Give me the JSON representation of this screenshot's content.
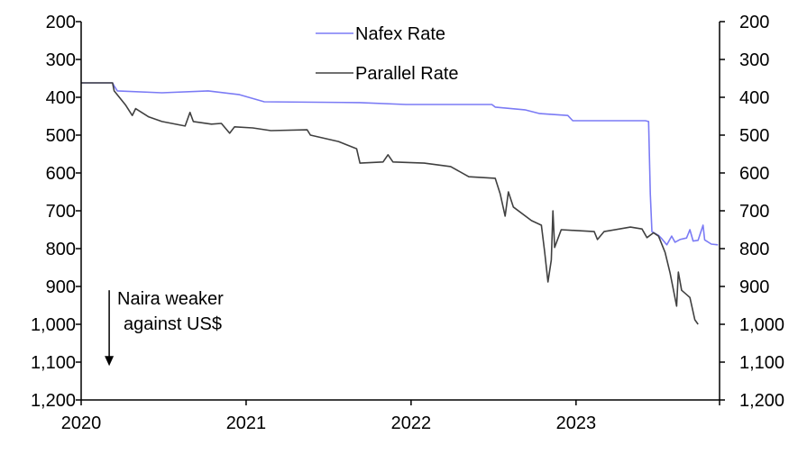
{
  "chart_data": {
    "type": "line",
    "title": "",
    "xlabel": "",
    "ylabel": "",
    "x_ticks": [
      "2020",
      "2021",
      "2022",
      "2023"
    ],
    "x_tick_values": [
      2020,
      2021,
      2022,
      2023
    ],
    "xlim": [
      2020,
      2023.87
    ],
    "ylim": [
      200,
      1200
    ],
    "y_inverted": true,
    "y_ticks": [
      "200",
      "300",
      "400",
      "500",
      "600",
      "700",
      "800",
      "900",
      "1,000",
      "1,100",
      "1,200"
    ],
    "y_tick_values": [
      200,
      300,
      400,
      500,
      600,
      700,
      800,
      900,
      1000,
      1100,
      1200
    ],
    "legend_placement": "top-center",
    "annotation": {
      "line1": "Naira weaker",
      "line2": "against US$",
      "arrow_from": 910,
      "arrow_to": 1110,
      "arrow_x": 2020.17
    },
    "series": [
      {
        "name": "Nafex Rate",
        "color": "#7b7bf5",
        "points": [
          [
            2020,
            362
          ],
          [
            2020.19,
            362
          ],
          [
            2020.2,
            370
          ],
          [
            2020.22,
            383
          ],
          [
            2020.49,
            388
          ],
          [
            2020.77,
            383
          ],
          [
            2020.96,
            393
          ],
          [
            2021.11,
            412
          ],
          [
            2021.69,
            414
          ],
          [
            2021.97,
            419
          ],
          [
            2022.49,
            419
          ],
          [
            2022.51,
            426
          ],
          [
            2022.69,
            433
          ],
          [
            2022.78,
            443
          ],
          [
            2022.95,
            448
          ],
          [
            2022.98,
            462
          ],
          [
            2023.42,
            462
          ],
          [
            2023.44,
            464
          ],
          [
            2023.45,
            655
          ],
          [
            2023.46,
            755
          ],
          [
            2023.5,
            765
          ],
          [
            2023.52,
            774
          ],
          [
            2023.55,
            790
          ],
          [
            2023.58,
            767
          ],
          [
            2023.6,
            783
          ],
          [
            2023.63,
            776
          ],
          [
            2023.67,
            772
          ],
          [
            2023.69,
            750
          ],
          [
            2023.71,
            780
          ],
          [
            2023.74,
            778
          ],
          [
            2023.77,
            738
          ],
          [
            2023.78,
            777
          ],
          [
            2023.82,
            788
          ],
          [
            2023.86,
            790
          ]
        ]
      },
      {
        "name": "Parallel Rate",
        "color": "#404040",
        "points": [
          [
            2020,
            362
          ],
          [
            2020.19,
            362
          ],
          [
            2020.2,
            383
          ],
          [
            2020.27,
            421
          ],
          [
            2020.31,
            448
          ],
          [
            2020.33,
            430
          ],
          [
            2020.41,
            452
          ],
          [
            2020.49,
            464
          ],
          [
            2020.63,
            476
          ],
          [
            2020.66,
            440
          ],
          [
            2020.68,
            464
          ],
          [
            2020.79,
            471
          ],
          [
            2020.85,
            469
          ],
          [
            2020.9,
            495
          ],
          [
            2020.93,
            478
          ],
          [
            2021.04,
            481
          ],
          [
            2021.15,
            488
          ],
          [
            2021.37,
            486
          ],
          [
            2021.39,
            500
          ],
          [
            2021.56,
            517
          ],
          [
            2021.67,
            536
          ],
          [
            2021.69,
            574
          ],
          [
            2021.83,
            571
          ],
          [
            2021.86,
            552
          ],
          [
            2021.89,
            571
          ],
          [
            2022.08,
            574
          ],
          [
            2022.24,
            583
          ],
          [
            2022.35,
            610
          ],
          [
            2022.51,
            614
          ],
          [
            2022.54,
            655
          ],
          [
            2022.57,
            714
          ],
          [
            2022.59,
            650
          ],
          [
            2022.62,
            690
          ],
          [
            2022.73,
            726
          ],
          [
            2022.79,
            738
          ],
          [
            2022.81,
            810
          ],
          [
            2022.83,
            888
          ],
          [
            2022.85,
            830
          ],
          [
            2022.86,
            700
          ],
          [
            2022.87,
            797
          ],
          [
            2022.91,
            750
          ],
          [
            2023.11,
            755
          ],
          [
            2023.13,
            776
          ],
          [
            2023.17,
            755
          ],
          [
            2023.33,
            743
          ],
          [
            2023.4,
            748
          ],
          [
            2023.43,
            771
          ],
          [
            2023.47,
            758
          ],
          [
            2023.5,
            767
          ],
          [
            2023.54,
            810
          ],
          [
            2023.57,
            864
          ],
          [
            2023.61,
            952
          ],
          [
            2023.62,
            862
          ],
          [
            2023.64,
            910
          ],
          [
            2023.69,
            929
          ],
          [
            2023.72,
            988
          ],
          [
            2023.74,
            1000
          ]
        ]
      }
    ]
  }
}
